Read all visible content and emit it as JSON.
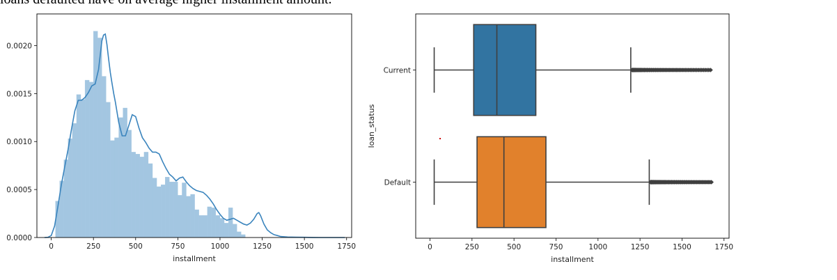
{
  "caption": "loans defaulted have on average higher installment amount.",
  "chart_data": [
    {
      "type": "histogram",
      "xlabel": "installment",
      "ylabel": "",
      "xlim": [
        -85,
        1780
      ],
      "ylim": [
        0,
        0.00233
      ],
      "xticks": [
        0,
        250,
        500,
        750,
        1000,
        1250,
        1500,
        1750
      ],
      "xtick_labels": [
        "0",
        "250",
        "500",
        "750",
        "1000",
        "1250",
        "1500",
        "1750"
      ],
      "yticks": [
        0,
        0.0005,
        0.001,
        0.0015,
        0.002
      ],
      "ytick_labels": [
        "0.0000",
        "0.0005",
        "0.0010",
        "0.0015",
        "0.0020"
      ],
      "bar_color": "#a3c6e1",
      "line_color": "#3a84bd",
      "bins": {
        "start": 25,
        "width": 25,
        "values": [
          0.00038,
          0.00059,
          0.00081,
          0.00103,
          0.00119,
          0.00149,
          0.00144,
          0.00164,
          0.00162,
          0.00215,
          0.00208,
          0.00168,
          0.00141,
          0.00101,
          0.00104,
          0.00125,
          0.00135,
          0.00112,
          0.00089,
          0.00087,
          0.00084,
          0.00089,
          0.00077,
          0.00062,
          0.00053,
          0.00055,
          0.00063,
          0.00058,
          0.00058,
          0.00044,
          0.00057,
          0.00043,
          0.00045,
          0.00029,
          0.00023,
          0.00023,
          0.00032,
          0.00031,
          0.00023,
          0.0002,
          0.00015,
          0.00031,
          0.00014,
          6e-05,
          3e-05
        ]
      },
      "kde": {
        "x": [
          -40,
          -20,
          0,
          20,
          40,
          60,
          80,
          100,
          120,
          140,
          160,
          180,
          200,
          220,
          240,
          260,
          280,
          300,
          310,
          320,
          330,
          340,
          350,
          360,
          370,
          380,
          400,
          420,
          440,
          460,
          480,
          500,
          520,
          540,
          560,
          580,
          600,
          620,
          640,
          660,
          680,
          700,
          720,
          740,
          760,
          780,
          800,
          820,
          840,
          860,
          880,
          900,
          920,
          940,
          960,
          980,
          1000,
          1020,
          1040,
          1060,
          1080,
          1100,
          1120,
          1140,
          1160,
          1180,
          1200,
          1220,
          1230,
          1240,
          1260,
          1280,
          1300,
          1320,
          1340,
          1360,
          1400,
          1450,
          1500,
          1550,
          1600,
          1650,
          1700,
          1740
        ],
        "y": [
          0,
          2e-06,
          2e-05,
          0.00012,
          0.00033,
          0.00055,
          0.00074,
          0.00092,
          0.00113,
          0.00132,
          0.00143,
          0.00143,
          0.00146,
          0.00151,
          0.00158,
          0.0016,
          0.00175,
          0.00205,
          0.00211,
          0.00212,
          0.00201,
          0.00186,
          0.00172,
          0.00161,
          0.0015,
          0.00141,
          0.0012,
          0.00106,
          0.00106,
          0.00117,
          0.00128,
          0.00126,
          0.00114,
          0.00104,
          0.00099,
          0.00093,
          0.00089,
          0.00089,
          0.00087,
          0.00079,
          0.00072,
          0.00066,
          0.00063,
          0.00059,
          0.00062,
          0.00063,
          0.00058,
          0.00054,
          0.00051,
          0.00049,
          0.00048,
          0.00047,
          0.00044,
          0.0004,
          0.00035,
          0.00029,
          0.00024,
          0.0002,
          0.00018,
          0.00019,
          0.0002,
          0.00018,
          0.00016,
          0.00014,
          0.00013,
          0.00015,
          0.00019,
          0.00025,
          0.00026,
          0.00023,
          0.00014,
          8e-05,
          5e-05,
          3e-05,
          2e-05,
          1e-05,
          5e-06,
          3e-06,
          2e-06,
          1e-06,
          0,
          0,
          0,
          0
        ]
      }
    },
    {
      "type": "boxplot",
      "xlabel": "installment",
      "ylabel": "loan_status",
      "xlim": [
        -85,
        1780
      ],
      "xticks": [
        0,
        250,
        500,
        750,
        1000,
        1250,
        1500,
        1750
      ],
      "xtick_labels": [
        "0",
        "250",
        "500",
        "750",
        "1000",
        "1250",
        "1500",
        "1750"
      ],
      "categories": [
        "Current",
        "Default"
      ],
      "boxes": [
        {
          "name": "Current",
          "color": "#3274a1",
          "whisker_low": 25,
          "q1": 260,
          "median": 398,
          "q3": 630,
          "whisker_high": 1195,
          "outlier_max": 1670
        },
        {
          "name": "Default",
          "color": "#e1812c",
          "whisker_low": 25,
          "q1": 280,
          "median": 440,
          "q3": 690,
          "whisker_high": 1305,
          "outlier_max": 1675
        }
      ]
    }
  ]
}
